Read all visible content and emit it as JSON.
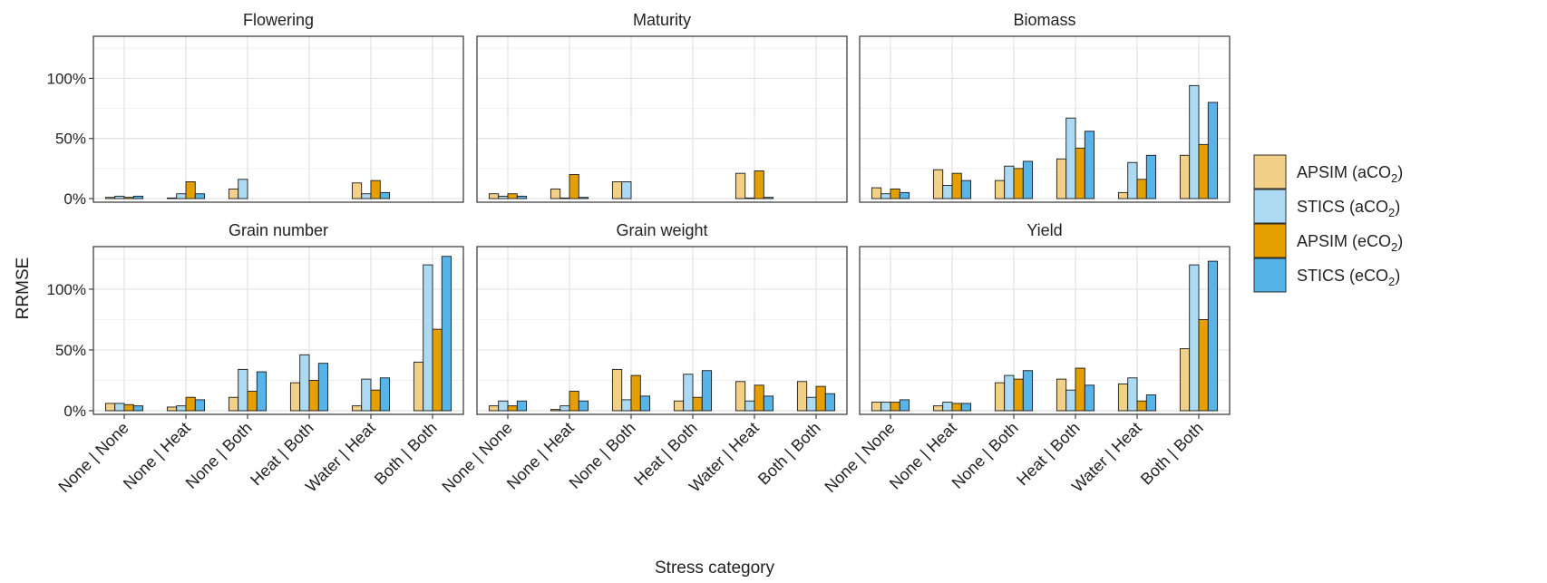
{
  "chart_data": {
    "type": "bar",
    "xlabel": "Stress category",
    "ylabel": "RRMSE",
    "categories": [
      "None | None",
      "None | Heat",
      "None | Both",
      "Heat | Both",
      "Water | Heat",
      "Both | Both"
    ],
    "y_ticks": [
      "0%",
      "50%",
      "100%"
    ],
    "ylim": [
      -3,
      135
    ],
    "grid": true,
    "legend_position": "right",
    "series_names": [
      "APSIM (aCO2)",
      "STICS (aCO2)",
      "APSIM (eCO2)",
      "STICS (eCO2)"
    ],
    "series_colors": [
      "#F3D087",
      "#ACDAF2",
      "#E69F00",
      "#56B4E9"
    ],
    "panels": [
      {
        "title": "Flowering",
        "values": [
          [
            1,
            2,
            1,
            2
          ],
          [
            0.5,
            4,
            14,
            4
          ],
          [
            8,
            16,
            null,
            null
          ],
          [
            null,
            null,
            null,
            null
          ],
          [
            13,
            4,
            15,
            5
          ],
          [
            null,
            null,
            null,
            null
          ]
        ]
      },
      {
        "title": "Maturity",
        "values": [
          [
            4,
            2,
            4,
            2
          ],
          [
            8,
            0.5,
            20,
            1
          ],
          [
            14,
            14,
            null,
            null
          ],
          [
            null,
            null,
            null,
            null
          ],
          [
            21,
            0.5,
            23,
            1
          ],
          [
            null,
            null,
            null,
            null
          ]
        ]
      },
      {
        "title": "Biomass",
        "values": [
          [
            9,
            4,
            8,
            5
          ],
          [
            24,
            11,
            21,
            15
          ],
          [
            15,
            27,
            25,
            31
          ],
          [
            33,
            67,
            42,
            56
          ],
          [
            5,
            30,
            16,
            36
          ],
          [
            36,
            94,
            45,
            80
          ]
        ]
      },
      {
        "title": "Grain number",
        "values": [
          [
            6,
            6,
            5,
            4
          ],
          [
            3,
            4,
            11,
            9
          ],
          [
            11,
            34,
            16,
            32
          ],
          [
            23,
            46,
            25,
            39
          ],
          [
            4,
            26,
            17,
            27
          ],
          [
            40,
            120,
            67,
            127
          ]
        ]
      },
      {
        "title": "Grain weight",
        "values": [
          [
            4,
            8,
            4,
            8
          ],
          [
            1,
            4,
            16,
            8
          ],
          [
            34,
            9,
            29,
            12
          ],
          [
            8,
            30,
            11,
            33
          ],
          [
            24,
            8,
            21,
            12
          ],
          [
            24,
            11,
            20,
            14
          ]
        ]
      },
      {
        "title": "Yield",
        "values": [
          [
            7,
            7,
            7,
            9
          ],
          [
            4,
            7,
            6,
            6
          ],
          [
            23,
            29,
            26,
            33
          ],
          [
            26,
            17,
            35,
            21
          ],
          [
            22,
            27,
            8,
            13
          ],
          [
            51,
            120,
            75,
            123
          ]
        ]
      }
    ]
  }
}
